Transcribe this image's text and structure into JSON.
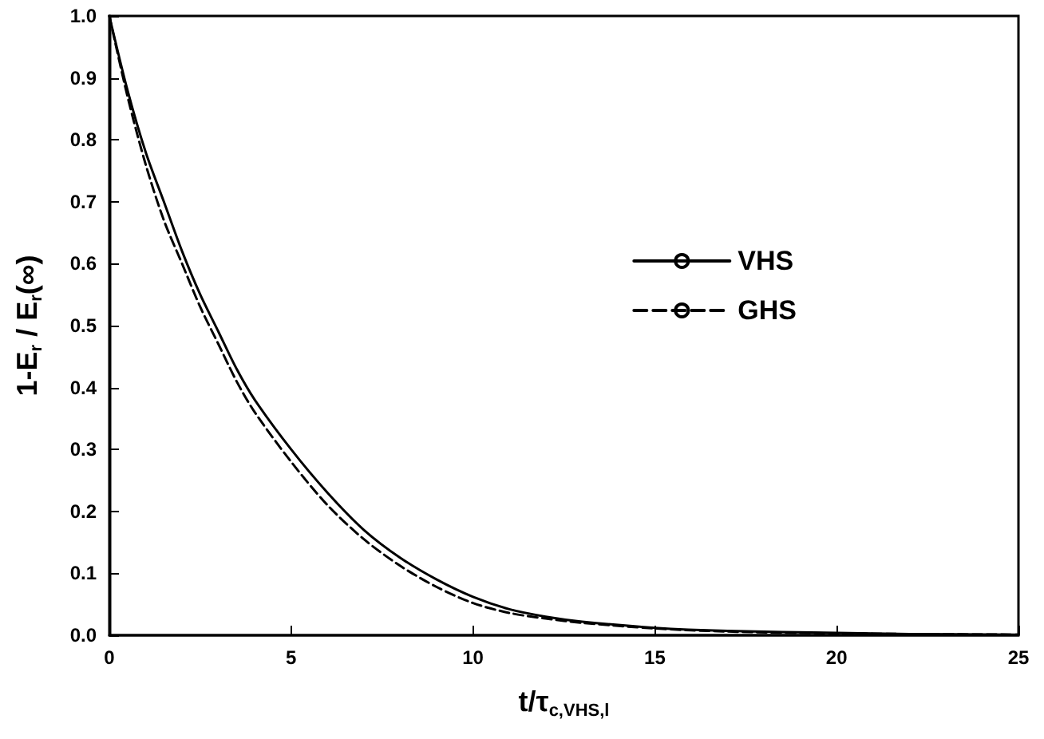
{
  "chart_data": {
    "type": "line",
    "xlabel": "t/τ$_{c,VHS,l}$",
    "ylabel": "1-E$_{r}$ / E$_{r}$(∞)",
    "x": [
      0,
      0.5,
      1,
      1.5,
      2,
      2.5,
      3,
      3.5,
      4,
      5,
      6,
      7,
      8,
      9,
      10,
      11,
      12,
      13,
      15,
      17,
      20,
      22,
      25
    ],
    "series": [
      {
        "name": "VHS",
        "color": "#000000",
        "line_style": "solid",
        "values": [
          1.0,
          0.88,
          0.78,
          0.7,
          0.62,
          0.55,
          0.49,
          0.43,
          0.38,
          0.3,
          0.23,
          0.17,
          0.125,
          0.09,
          0.062,
          0.042,
          0.03,
          0.022,
          0.012,
          0.007,
          0.004,
          0.002,
          0.001
        ]
      },
      {
        "name": "GHS",
        "color": "#000000",
        "line_style": "dashed",
        "values": [
          1.0,
          0.87,
          0.76,
          0.67,
          0.6,
          0.53,
          0.47,
          0.41,
          0.36,
          0.28,
          0.21,
          0.155,
          0.112,
          0.078,
          0.052,
          0.036,
          0.027,
          0.02,
          0.011,
          0.006,
          0.003,
          0.002,
          0.001
        ]
      }
    ],
    "xlim": [
      0,
      25
    ],
    "xticks": [
      0,
      5,
      10,
      15,
      20,
      25
    ],
    "ylim": [
      0,
      1
    ],
    "yticks": [
      {
        "value": 0,
        "label": "0.0"
      },
      {
        "value": 0.1,
        "label": "0.1"
      },
      {
        "value": 0.2,
        "label": "0.2"
      },
      {
        "value": 0.3,
        "label": "0.3"
      },
      {
        "value": 0.4,
        "label": "0.4"
      },
      {
        "value": 0.5,
        "label": "0.5"
      },
      {
        "value": 0.6,
        "label": "0.6"
      },
      {
        "value": 0.7,
        "label": "0.7"
      },
      {
        "value": 0.8,
        "label": "0.8"
      },
      {
        "value": 0.9,
        "label": "0.9"
      },
      {
        "value": 1,
        "label": "1.0"
      }
    ],
    "grid": false,
    "legend": "right",
    "marker": "none"
  }
}
